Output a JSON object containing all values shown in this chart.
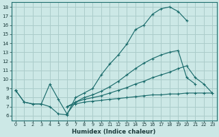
{
  "bg_color": "#cce8e6",
  "grid_color": "#aaccca",
  "line_color": "#1a6b6b",
  "xlabel": "Humidex (Indice chaleur)",
  "xlim": [
    -0.5,
    23.5
  ],
  "ylim": [
    5.5,
    18.5
  ],
  "xticks": [
    0,
    1,
    2,
    3,
    4,
    5,
    6,
    7,
    8,
    9,
    10,
    11,
    12,
    13,
    14,
    15,
    16,
    17,
    18,
    19,
    20,
    21,
    22,
    23
  ],
  "yticks": [
    6,
    7,
    8,
    9,
    10,
    11,
    12,
    13,
    14,
    15,
    16,
    17,
    18
  ],
  "lines": [
    {
      "x": [
        0,
        1,
        2,
        3,
        4,
        5,
        6,
        7,
        8,
        9,
        10,
        11,
        12,
        13,
        14,
        15,
        16,
        17,
        18,
        19,
        20,
        21,
        22,
        23
      ],
      "y": [
        8.8,
        7.5,
        7.3,
        7.3,
        7.0,
        6.2,
        6.1,
        8.0,
        8.5,
        9.0,
        10.5,
        11.7,
        12.7,
        13.9,
        15.5,
        16.0,
        17.2,
        17.8,
        18.0,
        17.5,
        16.5,
        null,
        null,
        null
      ]
    },
    {
      "x": [
        0,
        1,
        2,
        3,
        4,
        5,
        6,
        7,
        8,
        9,
        10,
        11,
        12,
        13,
        14,
        15,
        16,
        17,
        18,
        19,
        20,
        21,
        22,
        23
      ],
      "y": [
        8.8,
        7.5,
        7.3,
        7.3,
        9.5,
        7.8,
        6.2,
        7.5,
        8.0,
        8.3,
        8.7,
        9.2,
        9.8,
        10.5,
        11.2,
        11.8,
        12.3,
        12.7,
        13.0,
        13.2,
        10.2,
        9.5,
        null,
        null
      ]
    },
    {
      "x": [
        0,
        1,
        2,
        3,
        4,
        5,
        6,
        7,
        8,
        9,
        10,
        11,
        12,
        13,
        14,
        15,
        16,
        17,
        18,
        19,
        20,
        21,
        22,
        23
      ],
      "y": [
        8.8,
        null,
        null,
        null,
        null,
        null,
        7.0,
        7.5,
        7.8,
        8.0,
        8.2,
        8.5,
        8.8,
        9.1,
        9.5,
        9.8,
        10.2,
        10.5,
        10.8,
        11.2,
        11.5,
        10.2,
        9.5,
        8.5
      ]
    },
    {
      "x": [
        0,
        1,
        2,
        3,
        4,
        5,
        6,
        7,
        8,
        9,
        10,
        11,
        12,
        13,
        14,
        15,
        16,
        17,
        18,
        19,
        20,
        21,
        22,
        23
      ],
      "y": [
        8.8,
        null,
        null,
        null,
        null,
        null,
        7.0,
        7.3,
        7.5,
        7.6,
        7.7,
        7.8,
        7.9,
        8.0,
        8.1,
        8.2,
        8.3,
        8.3,
        8.4,
        8.4,
        8.5,
        8.5,
        8.5,
        8.5
      ]
    }
  ]
}
